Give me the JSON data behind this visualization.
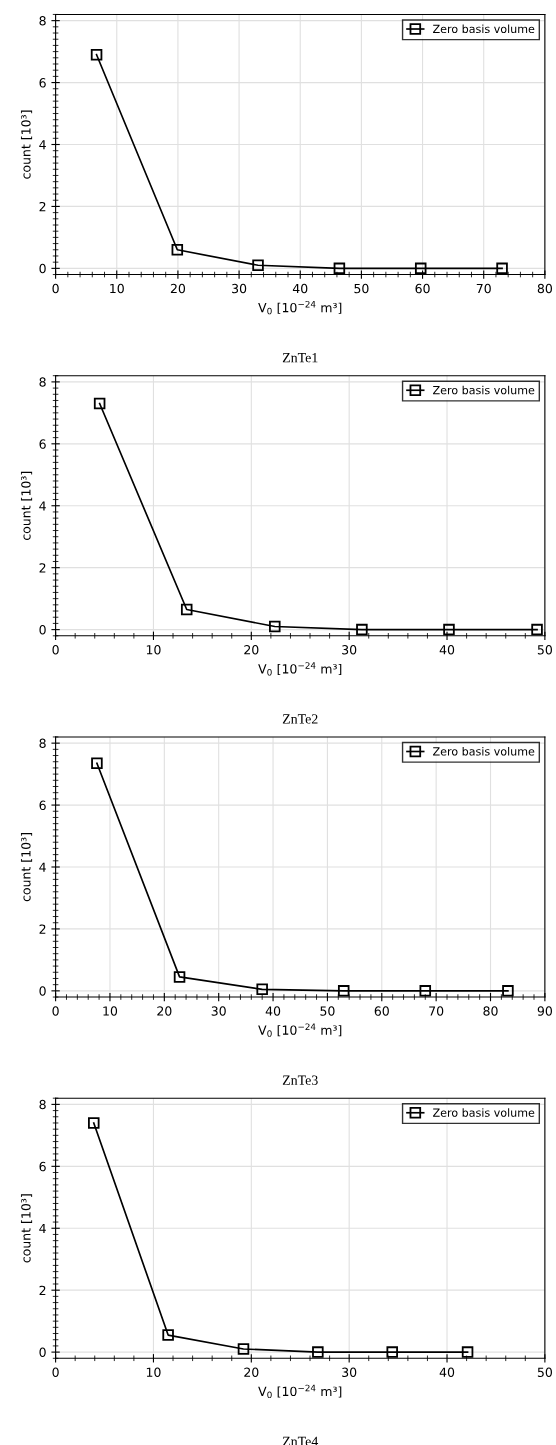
{
  "chart_data": [
    {
      "type": "line",
      "title": "ZnTe1",
      "xlabel": "V$_{0}$ [10$^{−24}$ m³]",
      "ylabel": "count [10³]",
      "xlim": [
        0,
        80
      ],
      "xticks": [
        0,
        10,
        20,
        30,
        40,
        50,
        60,
        70,
        80
      ],
      "ylim": [
        -0.2,
        8.2
      ],
      "yticks": [
        0,
        2,
        4,
        6,
        8
      ],
      "grid": true,
      "legend": "top right",
      "marker": "square",
      "line_style": "solid",
      "series": [
        {
          "name": "Zero basis volume",
          "color": "#000000",
          "x": [
            6.7,
            19.9,
            33.1,
            46.4,
            59.7,
            73.0
          ],
          "values": [
            6.9,
            0.6,
            0.1,
            0,
            0,
            0
          ]
        }
      ]
    },
    {
      "type": "line",
      "title": "ZnTe2",
      "xlabel": "V$_{0}$ [10$^{−24}$ m³]",
      "ylabel": "count [10³]",
      "xlim": [
        0,
        50
      ],
      "xticks": [
        0,
        10,
        20,
        30,
        40,
        50
      ],
      "ylim": [
        -0.2,
        8.2
      ],
      "yticks": [
        0,
        2,
        4,
        6,
        8
      ],
      "grid": true,
      "legend": "top right",
      "marker": "square",
      "line_style": "solid",
      "series": [
        {
          "name": "Zero basis volume",
          "color": "#000000",
          "x": [
            4.5,
            13.4,
            22.4,
            31.3,
            40.2,
            49.2
          ],
          "values": [
            7.3,
            0.65,
            0.1,
            0,
            0,
            0
          ]
        }
      ]
    },
    {
      "type": "line",
      "title": "ZnTe3",
      "xlabel": "V$_{0}$ [10$^{−24}$ m³]",
      "ylabel": "count [10³]",
      "xlim": [
        0,
        90
      ],
      "xticks": [
        0,
        10,
        20,
        30,
        40,
        50,
        60,
        70,
        80,
        90
      ],
      "ylim": [
        -0.2,
        8.2
      ],
      "yticks": [
        0,
        2,
        4,
        6,
        8
      ],
      "grid": true,
      "legend": "top right",
      "marker": "square",
      "line_style": "solid",
      "series": [
        {
          "name": "Zero basis volume",
          "color": "#000000",
          "x": [
            7.6,
            22.8,
            38.0,
            53.0,
            68.0,
            83.2
          ],
          "values": [
            7.35,
            0.45,
            0.05,
            0,
            0,
            0
          ]
        }
      ]
    },
    {
      "type": "line",
      "title": "ZnTe4",
      "xlabel": "V$_{0}$ [10$^{−24}$ m³]",
      "ylabel": "count [10³]",
      "xlim": [
        0,
        50
      ],
      "xticks": [
        0,
        10,
        20,
        30,
        40,
        50
      ],
      "ylim": [
        -0.2,
        8.2
      ],
      "yticks": [
        0,
        2,
        4,
        6,
        8
      ],
      "grid": true,
      "legend": "top right",
      "marker": "square",
      "line_style": "solid",
      "series": [
        {
          "name": "Zero basis volume",
          "color": "#000000",
          "x": [
            3.9,
            11.5,
            19.2,
            26.8,
            34.4,
            42.1
          ],
          "values": [
            7.4,
            0.55,
            0.1,
            0,
            0,
            0
          ]
        }
      ]
    }
  ]
}
